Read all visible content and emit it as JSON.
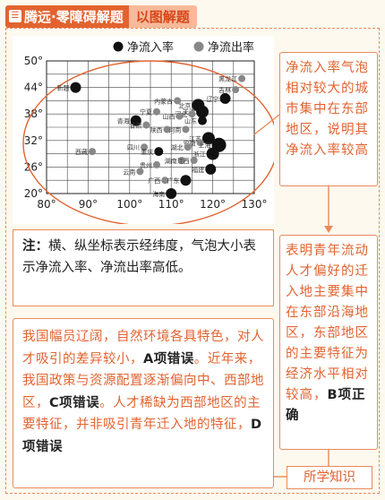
{
  "header": {
    "icon_glyph": "☰",
    "badge_text": "腾远·零障碍解题",
    "sub_text": "以图解题"
  },
  "chart_data": {
    "type": "scatter",
    "legend": [
      {
        "name": "净流入率",
        "color": "#111111"
      },
      {
        "name": "净流出率",
        "color": "#888888"
      }
    ],
    "legend_position": "top",
    "x_ticks": [
      "80°",
      "90°",
      "100°",
      "110°",
      "120°",
      "130°"
    ],
    "y_ticks": [
      "20°",
      "26°",
      "32°",
      "38°",
      "44°",
      "50°"
    ],
    "xlim": [
      80,
      130
    ],
    "ylim": [
      20,
      50
    ],
    "grid": true,
    "points": [
      {
        "label": "新疆",
        "x": 87,
        "y": 44,
        "series": "净流入率",
        "size": 6
      },
      {
        "label": "黑龙江",
        "x": 127,
        "y": 46,
        "series": "净流出率",
        "size": 4
      },
      {
        "label": "吉林",
        "x": 125.5,
        "y": 43.5,
        "series": "净流出率",
        "size": 4
      },
      {
        "label": "辽宁",
        "x": 123,
        "y": 41.5,
        "series": "净流入率",
        "size": 6
      },
      {
        "label": "内蒙古",
        "x": 111.5,
        "y": 41,
        "series": "净流出率",
        "size": 4
      },
      {
        "label": "北京",
        "x": 116.5,
        "y": 40,
        "series": "净流入率",
        "size": 7
      },
      {
        "label": "天津",
        "x": 117.5,
        "y": 38.5,
        "series": "净流入率",
        "size": 7
      },
      {
        "label": "宁夏",
        "x": 106.5,
        "y": 38.5,
        "series": "净流出率",
        "size": 4
      },
      {
        "label": "河北",
        "x": 115,
        "y": 38,
        "series": "净流出率",
        "size": 4
      },
      {
        "label": "山西",
        "x": 112,
        "y": 37.5,
        "series": "净流出率",
        "size": 4
      },
      {
        "label": "青海",
        "x": 101.5,
        "y": 36.5,
        "series": "净流入率",
        "size": 6
      },
      {
        "label": "陕西",
        "x": 109,
        "y": 34.5,
        "series": "净流出率",
        "size": 4
      },
      {
        "label": "甘肃",
        "x": 104,
        "y": 35.5,
        "series": "净流出率",
        "size": 4
      },
      {
        "label": "山东",
        "x": 117.5,
        "y": 36.5,
        "series": "净流入率",
        "size": 5
      },
      {
        "label": "河南",
        "x": 113.5,
        "y": 34.5,
        "series": "净流出率",
        "size": 4
      },
      {
        "label": "江苏",
        "x": 119,
        "y": 32.5,
        "series": "净流入率",
        "size": 7
      },
      {
        "label": "安徽",
        "x": 117,
        "y": 31.5,
        "series": "净流出率",
        "size": 4
      },
      {
        "label": "上海",
        "x": 121.5,
        "y": 31,
        "series": "净流入率",
        "size": 8
      },
      {
        "label": "浙江",
        "x": 120,
        "y": 29,
        "series": "净流入率",
        "size": 7
      },
      {
        "label": "湖北",
        "x": 114,
        "y": 30.5,
        "series": "净流出率",
        "size": 4
      },
      {
        "label": "四川",
        "x": 103.5,
        "y": 30.5,
        "series": "净流出率",
        "size": 4
      },
      {
        "label": "重庆",
        "x": 107,
        "y": 29.5,
        "series": "净流入率",
        "size": 5
      },
      {
        "label": "西藏",
        "x": 91,
        "y": 29.5,
        "series": "净流出率",
        "size": 4
      },
      {
        "label": "贵州",
        "x": 106.5,
        "y": 26.5,
        "series": "净流出率",
        "size": 4
      },
      {
        "label": "湖南",
        "x": 112.5,
        "y": 27.5,
        "series": "净流出率",
        "size": 4
      },
      {
        "label": "江西",
        "x": 115.5,
        "y": 27.5,
        "series": "净流出率",
        "size": 4
      },
      {
        "label": "福建",
        "x": 119.5,
        "y": 25.5,
        "series": "净流入率",
        "size": 6
      },
      {
        "label": "云南",
        "x": 102.5,
        "y": 25,
        "series": "净流出率",
        "size": 4
      },
      {
        "label": "广西",
        "x": 108.5,
        "y": 23,
        "series": "净流出率",
        "size": 4
      },
      {
        "label": "广东",
        "x": 113.5,
        "y": 23,
        "series": "净流入率",
        "size": 6
      },
      {
        "label": "海南",
        "x": 110,
        "y": 20,
        "series": "净流入率",
        "size": 6
      }
    ]
  },
  "note": {
    "label": "注：",
    "text": "横、纵坐标表示经纬度，气泡大小表示净流入率、净流出率高低。"
  },
  "callout1": "净流入率气泡相对较大的城市集中在东部地区，说明其净流入率较高",
  "callout2": {
    "text": "表明青年流动人才偏好的迁入地主要集中在东部沿海地区，东部地区的主要特征为经济水平相对较高，",
    "answer": "B项正确"
  },
  "analysis": {
    "t1": "我国幅员辽阔，自然环境各具特色，对人才吸引的差异较小，",
    "a1": "A项错误",
    "t2": "。近年来，我国政策与资源配置逐渐偏向中、西部地区，",
    "a2": "C项错误",
    "t3": "。人才稀缺为西部地区的主要特征，并非吸引青年迁入地的特征，",
    "a3": "D项错误"
  },
  "tag": "所学知识"
}
